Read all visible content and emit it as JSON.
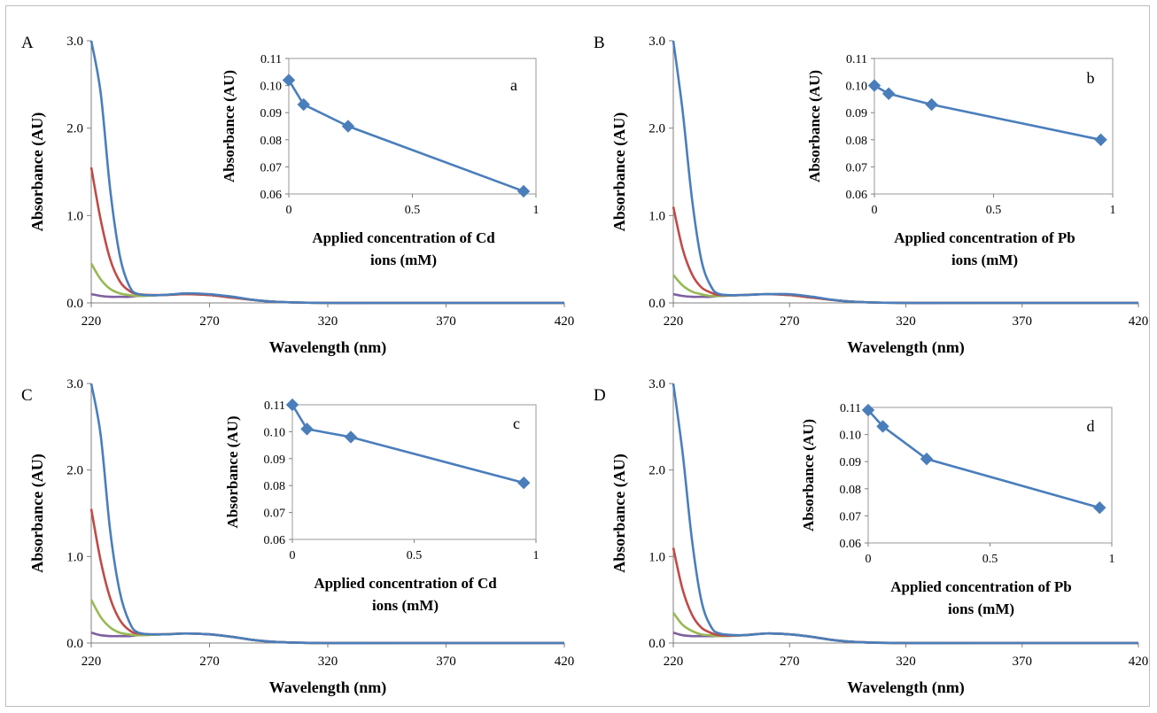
{
  "colors": {
    "blue": "#4a7ebb",
    "red": "#be4b48",
    "green": "#98b954",
    "purple": "#7d60a0",
    "inset_line": "#4a7ebb"
  },
  "chart_data": [
    {
      "type": "line",
      "panel_label": "A",
      "xlabel": "Wavelength (nm)",
      "ylabel": "Absorbance (AU)",
      "xlim": [
        220,
        420
      ],
      "ylim": [
        0,
        3.0
      ],
      "xticks": [
        "220",
        "270",
        "320",
        "370",
        "420"
      ],
      "yticks": [
        "0.0",
        "1.0",
        "2.0",
        "3.0"
      ],
      "x": [
        220,
        224,
        228,
        232,
        236,
        240,
        250,
        260,
        270,
        280,
        290,
        300,
        320,
        350,
        420
      ],
      "series": [
        {
          "color_key": "blue",
          "values": [
            3.0,
            2.4,
            1.3,
            0.55,
            0.2,
            0.1,
            0.09,
            0.11,
            0.1,
            0.07,
            0.03,
            0.01,
            0.0,
            0.0,
            0.0
          ]
        },
        {
          "color_key": "red",
          "values": [
            1.55,
            0.95,
            0.5,
            0.25,
            0.14,
            0.1,
            0.09,
            0.1,
            0.09,
            0.06,
            0.03,
            0.01,
            0.0,
            0.0,
            0.0
          ]
        },
        {
          "color_key": "green",
          "values": [
            0.45,
            0.27,
            0.16,
            0.11,
            0.09,
            0.08,
            0.09,
            0.1,
            0.09,
            0.06,
            0.03,
            0.01,
            0.0,
            0.0,
            0.0
          ]
        },
        {
          "color_key": "purple",
          "values": [
            0.1,
            0.08,
            0.07,
            0.07,
            0.07,
            0.08,
            0.09,
            0.1,
            0.09,
            0.06,
            0.03,
            0.01,
            0.0,
            0.0,
            0.0
          ]
        }
      ],
      "inset": {
        "type": "line",
        "label": "a",
        "xlabel": "Applied concentration of Cd ions (mM)",
        "xlabel_lines": [
          "Applied concentration of Cd",
          "ions (mM)"
        ],
        "ylabel": "Absorbance (AU)",
        "xlim": [
          0,
          1
        ],
        "ylim": [
          0.06,
          0.11
        ],
        "xticks": [
          "0",
          "0.5",
          "1"
        ],
        "yticks": [
          "0.06",
          "0.07",
          "0.08",
          "0.09",
          "0.10",
          "0.11"
        ],
        "x": [
          0,
          0.06,
          0.24,
          0.95
        ],
        "values": [
          0.102,
          0.093,
          0.085,
          0.061
        ]
      }
    },
    {
      "type": "line",
      "panel_label": "B",
      "xlabel": "Wavelength (nm)",
      "ylabel": "Absorbance (AU)",
      "xlim": [
        220,
        420
      ],
      "ylim": [
        0,
        3.0
      ],
      "xticks": [
        "220",
        "270",
        "320",
        "370",
        "420"
      ],
      "yticks": [
        "0.0",
        "1.0",
        "2.0",
        "3.0"
      ],
      "x": [
        220,
        224,
        228,
        232,
        236,
        240,
        250,
        260,
        270,
        280,
        290,
        300,
        320,
        350,
        420
      ],
      "series": [
        {
          "color_key": "blue",
          "values": [
            3.0,
            2.2,
            1.2,
            0.5,
            0.2,
            0.1,
            0.09,
            0.1,
            0.1,
            0.07,
            0.03,
            0.01,
            0.0,
            0.0,
            0.0
          ]
        },
        {
          "color_key": "red",
          "values": [
            1.1,
            0.62,
            0.33,
            0.18,
            0.12,
            0.09,
            0.09,
            0.1,
            0.09,
            0.06,
            0.03,
            0.01,
            0.0,
            0.0,
            0.0
          ]
        },
        {
          "color_key": "green",
          "values": [
            0.32,
            0.2,
            0.13,
            0.1,
            0.08,
            0.08,
            0.09,
            0.1,
            0.09,
            0.06,
            0.03,
            0.01,
            0.0,
            0.0,
            0.0
          ]
        },
        {
          "color_key": "purple",
          "values": [
            0.1,
            0.08,
            0.07,
            0.07,
            0.07,
            0.08,
            0.09,
            0.1,
            0.09,
            0.06,
            0.03,
            0.01,
            0.0,
            0.0,
            0.0
          ]
        }
      ],
      "inset": {
        "type": "line",
        "label": "b",
        "xlabel": "Applied concentration of Pb ions (mM)",
        "xlabel_lines": [
          "Applied concentration of Pb",
          "ions (mM)"
        ],
        "ylabel": "Absorbance (AU)",
        "xlim": [
          0,
          1
        ],
        "ylim": [
          0.06,
          0.11
        ],
        "xticks": [
          "0",
          "0.5",
          "1"
        ],
        "yticks": [
          "0.06",
          "0.07",
          "0.08",
          "0.09",
          "0.10",
          "0.11"
        ],
        "x": [
          0,
          0.06,
          0.24,
          0.95
        ],
        "values": [
          0.1,
          0.097,
          0.093,
          0.08
        ]
      }
    },
    {
      "type": "line",
      "panel_label": "C",
      "xlabel": "Wavelength (nm)",
      "ylabel": "Absorbance (AU)",
      "xlim": [
        220,
        420
      ],
      "ylim": [
        0,
        3.0
      ],
      "xticks": [
        "220",
        "270",
        "320",
        "370",
        "420"
      ],
      "yticks": [
        "0.0",
        "1.0",
        "2.0",
        "3.0"
      ],
      "x": [
        220,
        224,
        228,
        232,
        236,
        240,
        250,
        260,
        270,
        280,
        290,
        300,
        320,
        350,
        420
      ],
      "series": [
        {
          "color_key": "blue",
          "values": [
            3.0,
            2.4,
            1.3,
            0.6,
            0.25,
            0.12,
            0.1,
            0.11,
            0.1,
            0.07,
            0.03,
            0.01,
            0.0,
            0.0,
            0.0
          ]
        },
        {
          "color_key": "red",
          "values": [
            1.55,
            0.95,
            0.52,
            0.27,
            0.15,
            0.11,
            0.1,
            0.11,
            0.1,
            0.07,
            0.03,
            0.01,
            0.0,
            0.0,
            0.0
          ]
        },
        {
          "color_key": "green",
          "values": [
            0.5,
            0.3,
            0.18,
            0.12,
            0.1,
            0.09,
            0.1,
            0.11,
            0.1,
            0.07,
            0.03,
            0.01,
            0.0,
            0.0,
            0.0
          ]
        },
        {
          "color_key": "purple",
          "values": [
            0.12,
            0.09,
            0.08,
            0.08,
            0.08,
            0.09,
            0.1,
            0.11,
            0.1,
            0.07,
            0.03,
            0.01,
            0.0,
            0.0,
            0.0
          ]
        }
      ],
      "inset": {
        "type": "line",
        "label": "c",
        "xlabel": "Applied concentration of Cd ions (mM)",
        "xlabel_lines": [
          "Applied concentration of Cd",
          "ions (mM)"
        ],
        "ylabel": "Absorbance (AU)",
        "xlim": [
          0,
          1
        ],
        "ylim": [
          0.06,
          0.11
        ],
        "xticks": [
          "0",
          "0.5",
          "1"
        ],
        "yticks": [
          "0.06",
          "0.07",
          "0.08",
          "0.09",
          "0.10",
          "0.11"
        ],
        "x": [
          0,
          0.06,
          0.24,
          0.95
        ],
        "values": [
          0.11,
          0.101,
          0.098,
          0.081
        ]
      }
    },
    {
      "type": "line",
      "panel_label": "D",
      "xlabel": "Wavelength (nm)",
      "ylabel": "Absorbance (AU)",
      "xlim": [
        220,
        420
      ],
      "ylim": [
        0,
        3.0
      ],
      "xticks": [
        "220",
        "270",
        "320",
        "370",
        "420"
      ],
      "yticks": [
        "0.0",
        "1.0",
        "2.0",
        "3.0"
      ],
      "x": [
        220,
        224,
        228,
        232,
        236,
        240,
        250,
        260,
        270,
        280,
        290,
        300,
        320,
        350,
        420
      ],
      "series": [
        {
          "color_key": "blue",
          "values": [
            3.0,
            2.2,
            1.2,
            0.5,
            0.2,
            0.11,
            0.09,
            0.11,
            0.1,
            0.07,
            0.03,
            0.01,
            0.0,
            0.0,
            0.0
          ]
        },
        {
          "color_key": "red",
          "values": [
            1.1,
            0.62,
            0.33,
            0.18,
            0.12,
            0.09,
            0.09,
            0.11,
            0.1,
            0.07,
            0.03,
            0.01,
            0.0,
            0.0,
            0.0
          ]
        },
        {
          "color_key": "green",
          "values": [
            0.35,
            0.21,
            0.14,
            0.1,
            0.09,
            0.08,
            0.09,
            0.11,
            0.1,
            0.07,
            0.03,
            0.01,
            0.0,
            0.0,
            0.0
          ]
        },
        {
          "color_key": "purple",
          "values": [
            0.12,
            0.09,
            0.08,
            0.08,
            0.08,
            0.08,
            0.09,
            0.11,
            0.1,
            0.07,
            0.03,
            0.01,
            0.0,
            0.0,
            0.0
          ]
        }
      ],
      "inset": {
        "type": "line",
        "label": "d",
        "xlabel": "Applied concentration of Pb ions (mM)",
        "xlabel_lines": [
          "Applied concentration of Pb",
          "ions (mM)"
        ],
        "ylabel": "Absorbance (AU)",
        "xlim": [
          0,
          1
        ],
        "ylim": [
          0.06,
          0.11
        ],
        "xticks": [
          "0",
          "0.5",
          "1"
        ],
        "yticks": [
          "0.06",
          "0.07",
          "0.08",
          "0.09",
          "0.10",
          "0.11"
        ],
        "x": [
          0,
          0.06,
          0.24,
          0.95
        ],
        "values": [
          0.109,
          0.103,
          0.091,
          0.073
        ]
      }
    }
  ]
}
